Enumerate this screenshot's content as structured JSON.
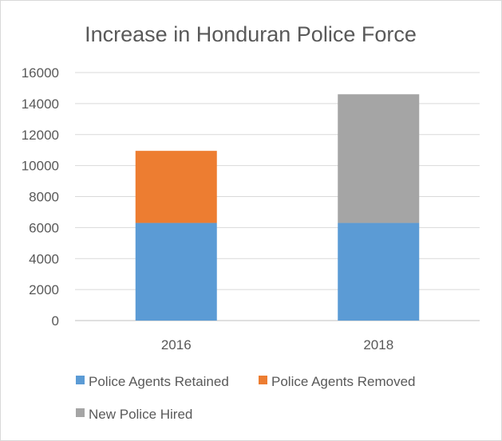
{
  "chart_data": {
    "type": "bar",
    "stacked": true,
    "title": "Increase in Honduran Police Force",
    "categories": [
      "2016",
      "2018"
    ],
    "ylim": [
      0,
      16000
    ],
    "yticks": [
      "0",
      "2000",
      "4000",
      "6000",
      "8000",
      "10000",
      "12000",
      "14000",
      "16000"
    ],
    "grid": true,
    "legend_position": "bottom",
    "series": [
      {
        "name": "Police Agents Retained",
        "values": [
          6300,
          6300
        ],
        "color": "#5b9bd5"
      },
      {
        "name": "Police Agents Removed",
        "values": [
          4650,
          0
        ],
        "color": "#ed7d31"
      },
      {
        "name": "New Police Hired",
        "values": [
          0,
          8300
        ],
        "color": "#a5a5a5"
      }
    ]
  }
}
